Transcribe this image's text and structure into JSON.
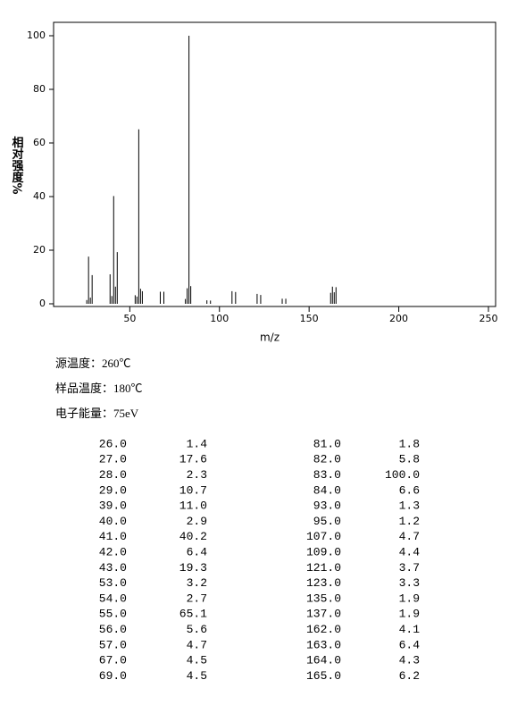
{
  "chart_data": {
    "type": "bar",
    "xlabel": "m/z",
    "ylabel": "相对强度%",
    "x": [
      26,
      27,
      28,
      29,
      39,
      40,
      41,
      42,
      43,
      53,
      54,
      55,
      56,
      57,
      67,
      69,
      81,
      82,
      83,
      84,
      93,
      95,
      107,
      109,
      121,
      123,
      135,
      137,
      162,
      163,
      164,
      165
    ],
    "values": [
      1.4,
      17.6,
      2.3,
      10.7,
      11.0,
      2.9,
      40.2,
      6.4,
      19.3,
      3.2,
      2.7,
      65.1,
      5.6,
      4.7,
      4.5,
      4.5,
      1.8,
      5.8,
      100.0,
      6.6,
      1.3,
      1.2,
      4.7,
      4.4,
      3.7,
      3.3,
      1.9,
      1.9,
      4.1,
      6.4,
      4.3,
      6.2
    ],
    "color": "#000000",
    "xlim": [
      7.5,
      254
    ],
    "xticks": [
      50,
      100,
      150,
      200,
      250
    ],
    "ylim": [
      -1,
      105
    ],
    "yticks": [
      0,
      20,
      40,
      60,
      80,
      100
    ]
  },
  "info": [
    "源温度：260℃",
    "样品温度：180℃",
    "电子能量：75eV"
  ],
  "table": {
    "rows": [
      [
        "26.0",
        "1.4",
        "81.0",
        "1.8"
      ],
      [
        "27.0",
        "17.6",
        "82.0",
        "5.8"
      ],
      [
        "28.0",
        "2.3",
        "83.0",
        "100.0"
      ],
      [
        "29.0",
        "10.7",
        "84.0",
        "6.6"
      ],
      [
        "39.0",
        "11.0",
        "93.0",
        "1.3"
      ],
      [
        "40.0",
        "2.9",
        "95.0",
        "1.2"
      ],
      [
        "41.0",
        "40.2",
        "107.0",
        "4.7"
      ],
      [
        "42.0",
        "6.4",
        "109.0",
        "4.4"
      ],
      [
        "43.0",
        "19.3",
        "121.0",
        "3.7"
      ],
      [
        "53.0",
        "3.2",
        "123.0",
        "3.3"
      ],
      [
        "54.0",
        "2.7",
        "135.0",
        "1.9"
      ],
      [
        "55.0",
        "65.1",
        "137.0",
        "1.9"
      ],
      [
        "56.0",
        "5.6",
        "162.0",
        "4.1"
      ],
      [
        "57.0",
        "4.7",
        "163.0",
        "6.4"
      ],
      [
        "67.0",
        "4.5",
        "164.0",
        "4.3"
      ],
      [
        "69.0",
        "4.5",
        "165.0",
        "6.2"
      ]
    ]
  }
}
